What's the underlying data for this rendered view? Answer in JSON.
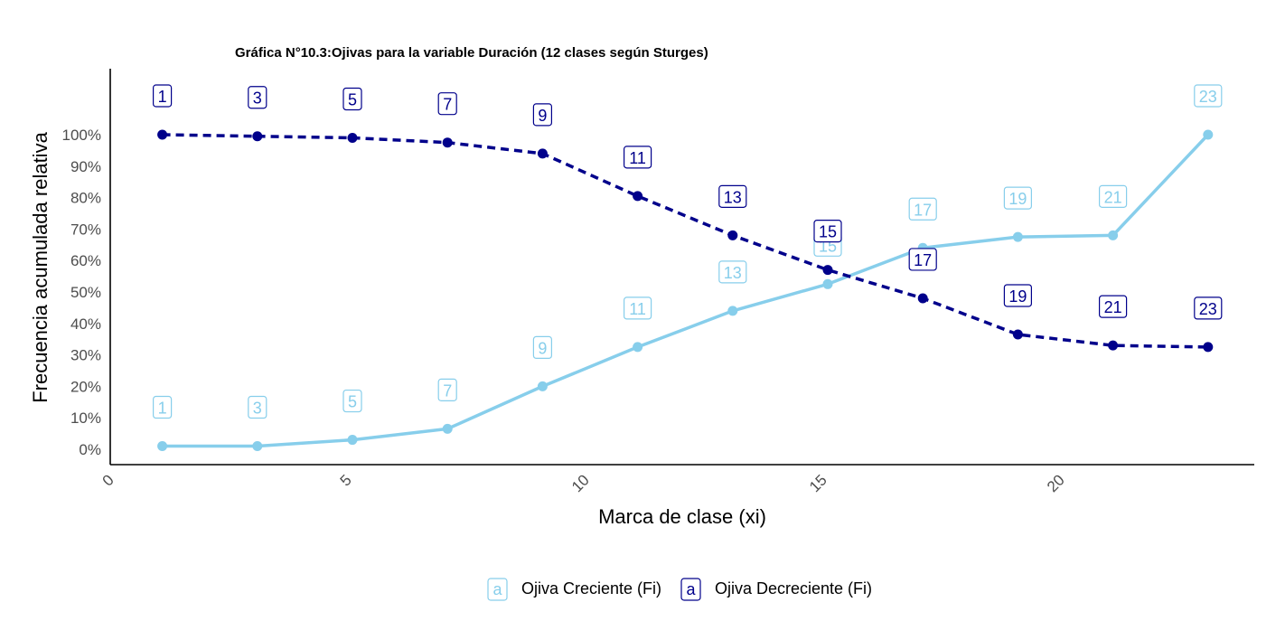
{
  "chart_data": {
    "type": "line",
    "title": "Gráfica N°10.3:Ojivas para la variable Duración (12 clases según Sturges)",
    "xlabel": "Marca de clase (xi)",
    "ylabel": "Frecuencia acumulada relativa",
    "xlim": [
      0,
      24
    ],
    "ylim": [
      -0.05,
      1.05
    ],
    "x_ticks": [
      0,
      5,
      10,
      15,
      20
    ],
    "y_ticks": [
      0,
      0.1,
      0.2,
      0.3,
      0.4,
      0.5,
      0.6,
      0.7,
      0.8,
      0.9,
      1.0
    ],
    "y_tick_labels": [
      "0%",
      "10%",
      "20%",
      "30%",
      "40%",
      "50%",
      "60%",
      "70%",
      "80%",
      "90%",
      "100%"
    ],
    "x": [
      1,
      3,
      5,
      7,
      9,
      11,
      13,
      15,
      17,
      19,
      21,
      23
    ],
    "grid": false,
    "legend_position": "bottom",
    "series": [
      {
        "name": "Ojiva Creciente (Fi)",
        "color": "#87CEEB",
        "line_style": "solid",
        "values": [
          0.01,
          0.01,
          0.03,
          0.065,
          0.2,
          0.325,
          0.44,
          0.525,
          0.64,
          0.675,
          0.68,
          1.0
        ],
        "point_labels": [
          "1",
          "3",
          "5",
          "7",
          "9",
          "11",
          "13",
          "15",
          "17",
          "19",
          "21",
          "23"
        ]
      },
      {
        "name": "Ojiva Decreciente (Fi)",
        "color": "#00008B",
        "line_style": "dashed",
        "values": [
          1.0,
          0.995,
          0.99,
          0.975,
          0.94,
          0.805,
          0.68,
          0.57,
          0.48,
          0.365,
          0.33,
          0.325
        ],
        "point_labels": [
          "1",
          "3",
          "5",
          "7",
          "9",
          "11",
          "13",
          "15",
          "17",
          "19",
          "21",
          "23"
        ]
      }
    ],
    "legend_key_glyph": "a"
  }
}
